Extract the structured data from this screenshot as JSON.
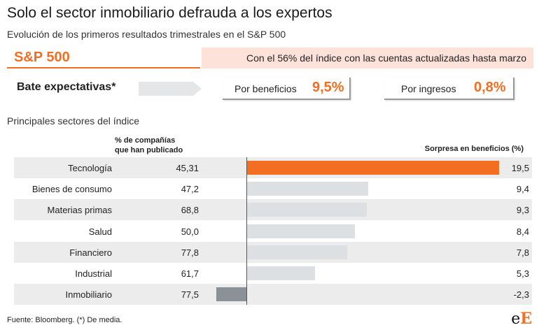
{
  "title": "Solo el sector inmobiliario defrauda a los expertos",
  "subtitle": "Evolución de los primeros resultados trimestrales en el S&P 500",
  "index_bar": {
    "name": "S&P 500",
    "note": "Con el 56% del índice con las cuentas actualizadas hasta marzo"
  },
  "beat": {
    "label": "Bate expectativas*",
    "earnings_label": "Por beneficios",
    "earnings_value": "9,5%",
    "revenue_label": "Por ingresos",
    "revenue_value": "0,8%"
  },
  "sectors_title": "Principales sectores del índice",
  "colors": {
    "accent": "#f26f22",
    "bar_default": "#dde0e3",
    "bar_negative": "#8a9197",
    "row_shade": "#ececec"
  },
  "chart_data": {
    "type": "bar",
    "orientation": "horizontal",
    "column_published_header_1": "% de compañías",
    "column_published_header_2": "que han publicado",
    "value_header": "Sorpresa en beneficios (%)",
    "categories": [
      "Tecnología",
      "Bienes de consumo",
      "Materias primas",
      "Salud",
      "Financiero",
      "Industrial",
      "Inmobiliario"
    ],
    "published": [
      "45,31",
      "47,2",
      "68,8",
      "50,0",
      "77,8",
      "61,7",
      "77,5"
    ],
    "values": [
      19.5,
      9.4,
      9.3,
      8.4,
      7.8,
      5.3,
      -2.3
    ],
    "value_labels": [
      "19,5",
      "9,4",
      "9,3",
      "8,4",
      "7,8",
      "5,3",
      "-2,3"
    ],
    "highlight_category": "Tecnología"
  },
  "footnote": "Fuente: Bloomberg. (*) De media.",
  "logo": {
    "part1": "e",
    "part2": "E"
  }
}
